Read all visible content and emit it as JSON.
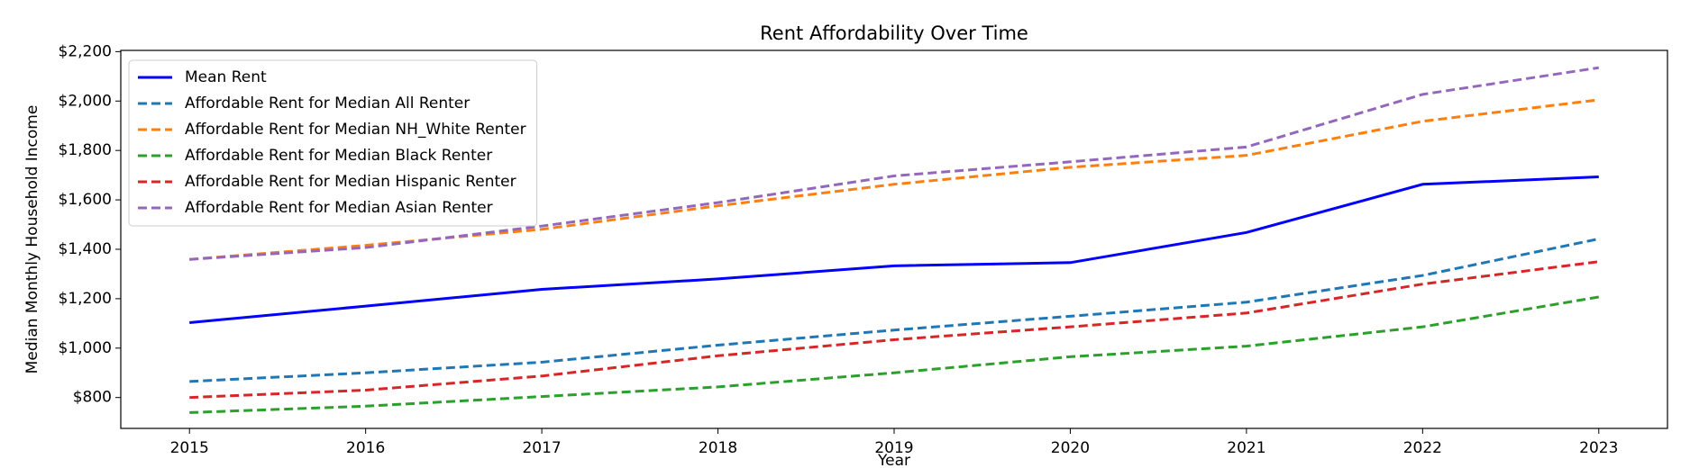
{
  "chart_data": {
    "type": "line",
    "title": "Rent Affordability Over Time",
    "x_label": "Year",
    "y_label": "Median Monthly Household Income",
    "x": [
      2015,
      2016,
      2017,
      2018,
      2019,
      2020,
      2021,
      2022,
      2023
    ],
    "xlim": [
      2014.61,
      2023.39
    ],
    "xticks": [
      2015,
      2016,
      2017,
      2018,
      2019,
      2020,
      2021,
      2022,
      2023
    ],
    "ylim": [
      675,
      2205
    ],
    "yticks": [
      {
        "value": 800,
        "label": "$800"
      },
      {
        "value": 1000,
        "label": "$1,000"
      },
      {
        "value": 1200,
        "label": "$1,200"
      },
      {
        "value": 1400,
        "label": "$1,400"
      },
      {
        "value": 1600,
        "label": "$1,600"
      },
      {
        "value": 1800,
        "label": "$1,800"
      },
      {
        "value": 2000,
        "label": "$2,000"
      },
      {
        "value": 2200,
        "label": "$2,200"
      }
    ],
    "legend": "upper left",
    "series": [
      {
        "name": "Mean Rent",
        "color": "#0000ff",
        "style": "solid",
        "values": [
          1103,
          1170,
          1238,
          1280,
          1333,
          1346,
          1468,
          1663,
          1693
        ]
      },
      {
        "name": "Affordable Rent for Median All Renter",
        "color": "#1f77b4",
        "style": "dashed",
        "values": [
          865,
          900,
          943,
          1012,
          1073,
          1129,
          1186,
          1294,
          1442
        ]
      },
      {
        "name": "Affordable Rent for Median NH_White Renter",
        "color": "#ff7f0e",
        "style": "dashed",
        "values": [
          1359,
          1416,
          1481,
          1576,
          1663,
          1732,
          1780,
          1918,
          2005
        ]
      },
      {
        "name": "Affordable Rent for Median Black Renter",
        "color": "#2ca02c",
        "style": "dashed",
        "values": [
          739,
          765,
          804,
          843,
          900,
          965,
          1008,
          1086,
          1207
        ]
      },
      {
        "name": "Affordable Rent for Median Hispanic Renter",
        "color": "#d62728",
        "style": "dashed",
        "values": [
          800,
          830,
          887,
          969,
          1034,
          1086,
          1142,
          1259,
          1350
        ]
      },
      {
        "name": "Affordable Rent for Median Asian Renter",
        "color": "#9467bd",
        "style": "dashed",
        "values": [
          1359,
          1407,
          1494,
          1589,
          1697,
          1754,
          1814,
          2027,
          2135
        ]
      }
    ]
  }
}
